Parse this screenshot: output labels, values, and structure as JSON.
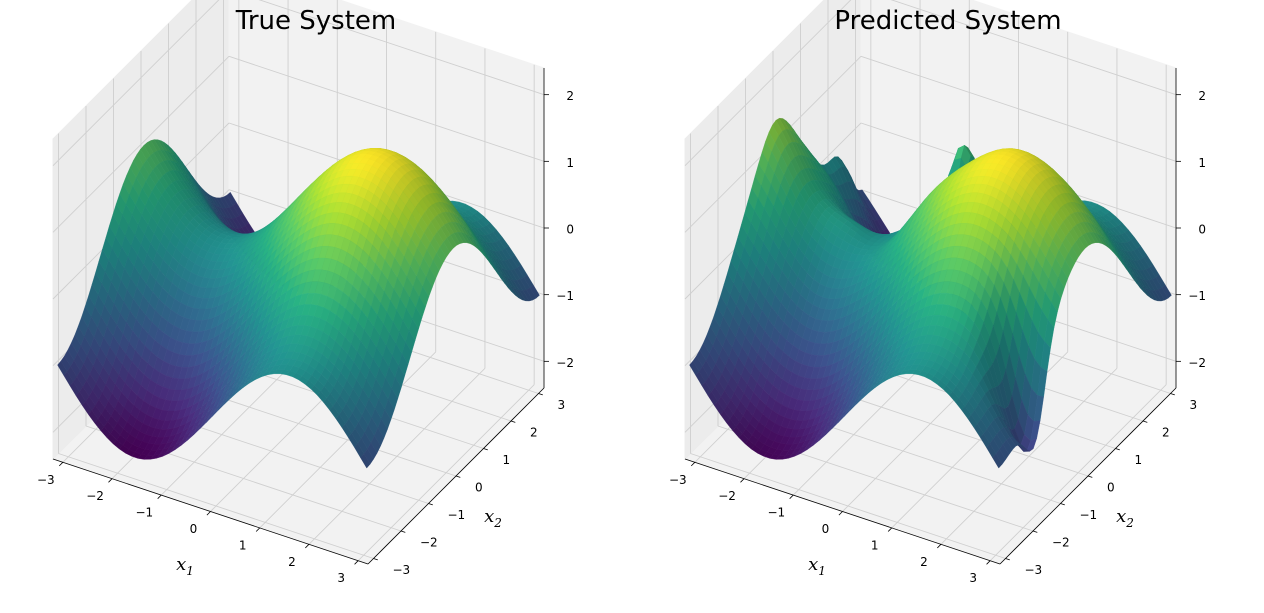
{
  "chart_data": [
    {
      "type": "surface3d",
      "title": "True System",
      "xlabel": "x",
      "xlabel_sub": "1",
      "ylabel": "x",
      "ylabel_sub": "2",
      "zlabel": "",
      "xlim": [
        -3.2,
        3.2
      ],
      "ylim": [
        -3.2,
        3.2
      ],
      "zlim": [
        -2.4,
        2.4
      ],
      "xticks": [
        -3,
        -2,
        -1,
        0,
        1,
        2,
        3
      ],
      "yticks": [
        -3,
        -2,
        -1,
        0,
        1,
        2,
        3
      ],
      "zticks": [
        -2,
        -1,
        0,
        1,
        2
      ],
      "xtick_labels": [
        "−3",
        "−2",
        "−1",
        "0",
        "1",
        "2",
        "3"
      ],
      "ytick_labels": [
        "−3",
        "−2",
        "−1",
        "0",
        "1",
        "2",
        "3"
      ],
      "ztick_labels": [
        "−2",
        "−1",
        "0",
        "1",
        "2"
      ],
      "function": "sin(x1) + cos(x2)",
      "colormap": "viridis",
      "grid": true,
      "perturbed": false
    },
    {
      "type": "surface3d",
      "title": "Predicted System",
      "xlabel": "x",
      "xlabel_sub": "1",
      "ylabel": "x",
      "ylabel_sub": "2",
      "zlabel": "",
      "xlim": [
        -3.2,
        3.2
      ],
      "ylim": [
        -3.2,
        3.2
      ],
      "zlim": [
        -2.4,
        2.4
      ],
      "xticks": [
        -3,
        -2,
        -1,
        0,
        1,
        2,
        3
      ],
      "yticks": [
        -3,
        -2,
        -1,
        0,
        1,
        2,
        3
      ],
      "zticks": [
        -2,
        -1,
        0,
        1,
        2
      ],
      "xtick_labels": [
        "−3",
        "−2",
        "−1",
        "0",
        "1",
        "2",
        "3"
      ],
      "ytick_labels": [
        "−3",
        "−2",
        "−1",
        "0",
        "1",
        "2",
        "3"
      ],
      "ztick_labels": [
        "−2",
        "−1",
        "0",
        "1",
        "2"
      ],
      "function": "sin(x1) + cos(x2)",
      "colormap": "viridis",
      "grid": true,
      "perturbed": true
    }
  ]
}
